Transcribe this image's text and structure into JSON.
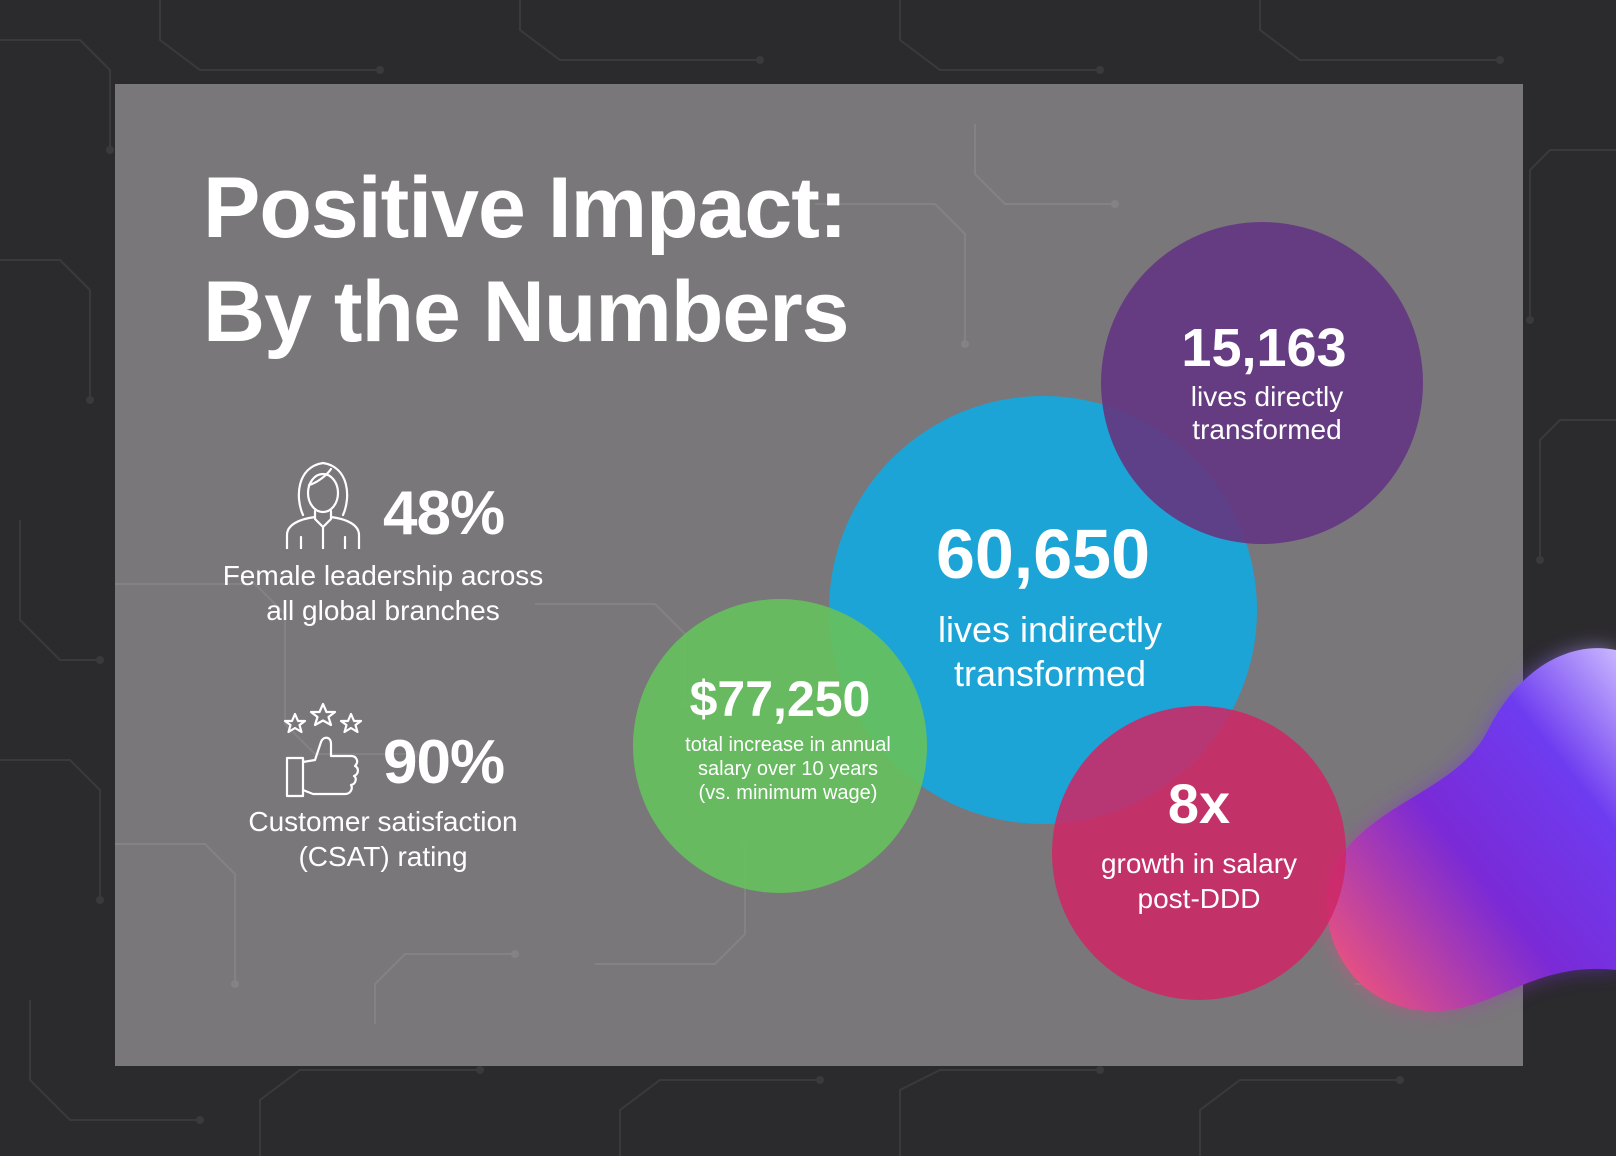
{
  "title": {
    "line1": "Positive Impact:",
    "line2": "By the Numbers"
  },
  "stats": [
    {
      "icon": "woman-icon",
      "value": "48%",
      "desc_line1": "Female leadership across",
      "desc_line2": "all global branches"
    },
    {
      "icon": "thumbs-up-stars-icon",
      "value": "90%",
      "desc_line1": "Customer satisfaction",
      "desc_line2": "(CSAT) rating"
    }
  ],
  "bubbles": {
    "purple": {
      "value": "15,163",
      "desc_line1": "lives directly",
      "desc_line2": "transformed",
      "color": "#643782"
    },
    "blue": {
      "value": "60,650",
      "desc_line1": "lives indirectly",
      "desc_line2": "transformed",
      "color": "#17a6dc"
    },
    "green": {
      "value": "$77,250",
      "desc_line1": "total increase in annual",
      "desc_line2": "salary over 10 years",
      "desc_line3": "(vs. minimum wage)",
      "color": "#66c05c"
    },
    "pink": {
      "value": "8x",
      "desc_line1": "growth in salary",
      "desc_line2": "post-DDD",
      "color": "#cd2866"
    }
  },
  "colors": {
    "background": "#2b2a2d",
    "panel": "#7d7b7e",
    "text": "#ffffff"
  }
}
